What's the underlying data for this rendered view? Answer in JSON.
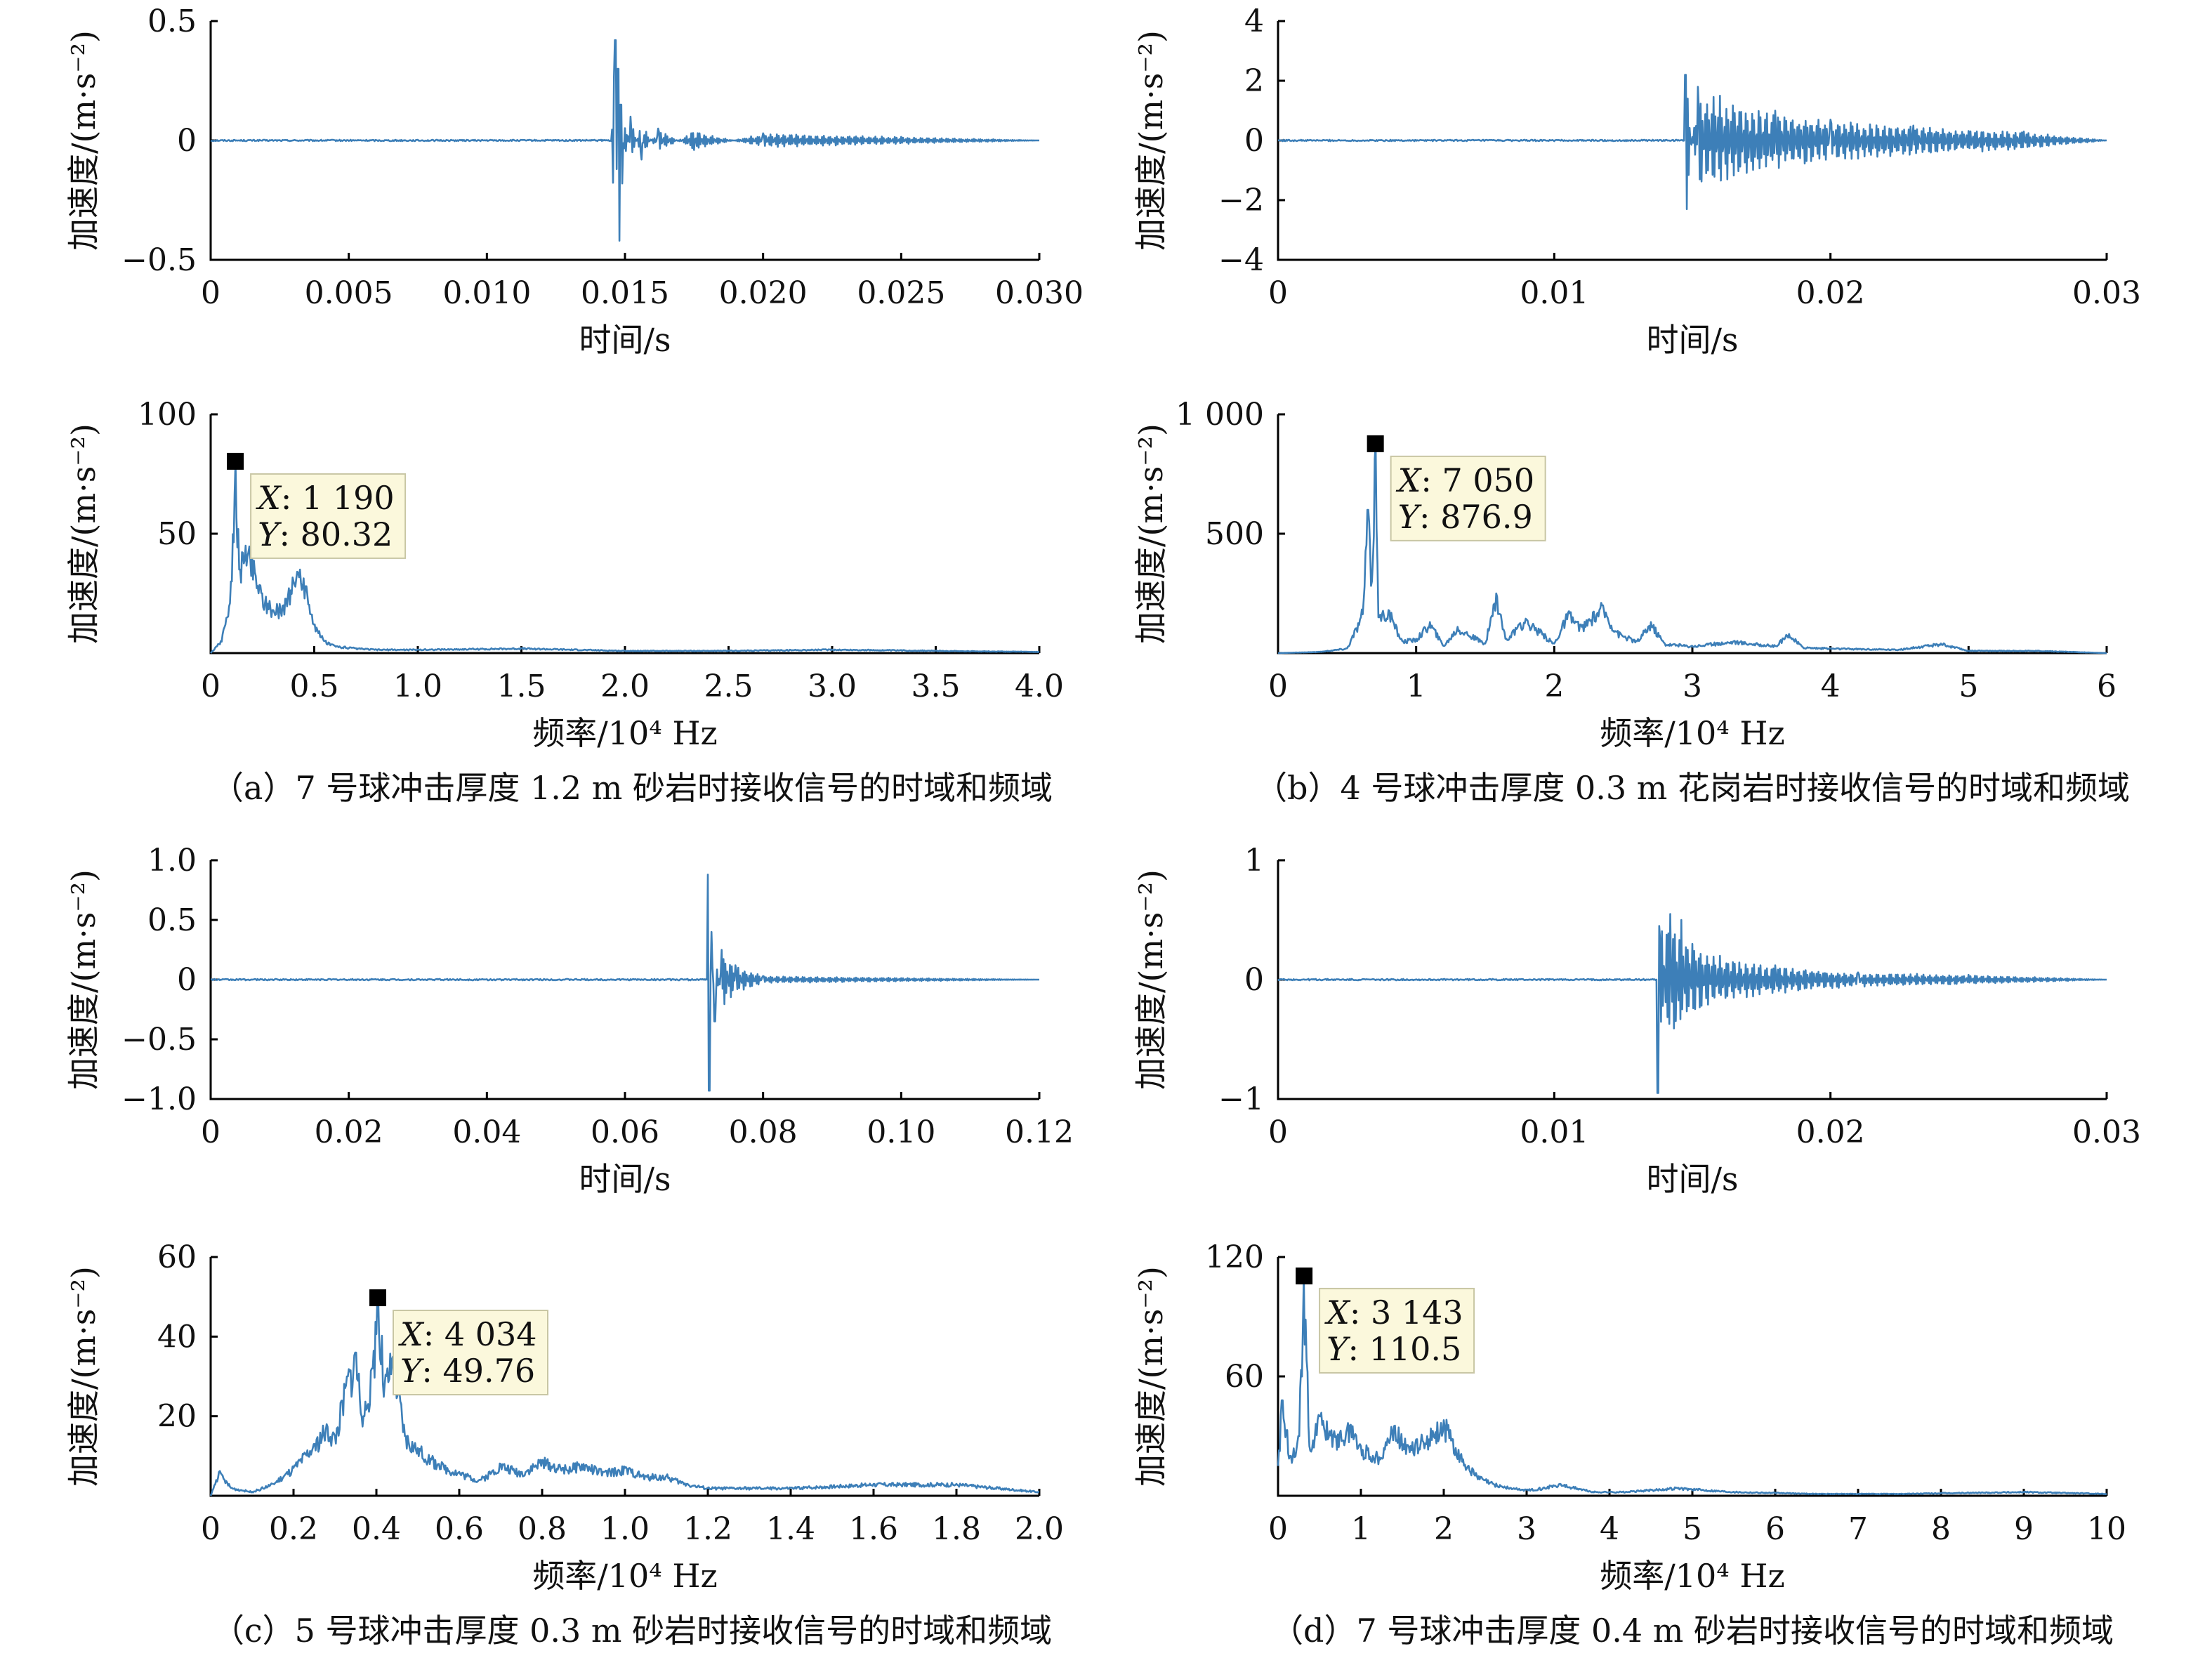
{
  "chart_data": [
    {
      "id": "a-time",
      "type": "line",
      "xlabel": "时间/s",
      "ylabel": "加速度/(m·s⁻²)",
      "xlim": [
        0,
        0.03
      ],
      "ylim": [
        -0.5,
        0.5
      ],
      "xticks": [
        0,
        0.005,
        0.01,
        0.015,
        0.02,
        0.025,
        0.03
      ],
      "xtick_labels": [
        "0",
        "0.005",
        "0.010",
        "0.015",
        "0.020",
        "0.025",
        "0.030"
      ],
      "yticks": [
        -0.5,
        0,
        0.5
      ],
      "ytick_labels": [
        "−0.5",
        "0",
        "0.5"
      ],
      "series": [
        {
          "x": [
            0,
            0.0145,
            0.01465,
            0.0147,
            0.01475,
            0.0148,
            0.01485,
            0.0149,
            0.0152,
            0.0156,
            0.0162,
            0.0175,
            0.02,
            0.025,
            0.03
          ],
          "y": [
            0,
            0,
            0.42,
            -0.12,
            0.3,
            -0.42,
            0.15,
            -0.18,
            0.1,
            -0.08,
            0.05,
            -0.04,
            0.03,
            0.015,
            0
          ]
        }
      ],
      "color": "#3d7fb8"
    },
    {
      "id": "b-time",
      "type": "line",
      "xlabel": "时间/s",
      "ylabel": "加速度/(m·s⁻²)",
      "xlim": [
        0,
        0.03
      ],
      "ylim": [
        -4,
        4
      ],
      "xticks": [
        0,
        0.01,
        0.02,
        0.03
      ],
      "xtick_labels": [
        "0",
        "0.01",
        "0.02",
        "0.03"
      ],
      "yticks": [
        -4,
        -2,
        0,
        2,
        4
      ],
      "ytick_labels": [
        "−4",
        "−2",
        "0",
        "2",
        "4"
      ],
      "series": [
        {
          "x": [
            0,
            0.0147,
            0.01475,
            0.0148,
            0.0152,
            0.016,
            0.018,
            0.02,
            0.023,
            0.027,
            0.03
          ],
          "y": [
            0,
            0,
            2.2,
            -2.3,
            1.8,
            1.5,
            1.0,
            0.7,
            0.5,
            0.3,
            0
          ]
        }
      ],
      "color": "#3d7fb8"
    },
    {
      "id": "a-freq",
      "type": "line",
      "xlabel": "频率/10⁴ Hz",
      "ylabel": "加速度/(m·s⁻²)",
      "xlim": [
        0,
        4.0
      ],
      "ylim": [
        0,
        100
      ],
      "xticks": [
        0,
        0.5,
        1.0,
        1.5,
        2.0,
        2.5,
        3.0,
        3.5,
        4.0
      ],
      "xtick_labels": [
        "0",
        "0.5",
        "1.0",
        "1.5",
        "2.0",
        "2.5",
        "3.0",
        "3.5",
        "4.0"
      ],
      "yticks": [
        50,
        100
      ],
      "ytick_labels": [
        "50",
        "100"
      ],
      "series": [
        {
          "x": [
            0,
            0.05,
            0.08,
            0.1,
            0.119,
            0.14,
            0.17,
            0.2,
            0.25,
            0.3,
            0.35,
            0.4,
            0.43,
            0.46,
            0.5,
            0.55,
            0.6,
            0.7,
            0.8,
            1.0,
            1.5,
            2.0,
            2.5,
            3.0,
            3.5,
            4.0
          ],
          "y": [
            0,
            5,
            15,
            30,
            80.32,
            35,
            45,
            40,
            25,
            18,
            20,
            30,
            35,
            28,
            12,
            5,
            3,
            2,
            1.5,
            1.5,
            2,
            1,
            1,
            1.5,
            1,
            0.5
          ]
        }
      ],
      "datatip": {
        "x_label": "X",
        "x_value": "1 190",
        "y_label": "Y",
        "y_value": "80.32",
        "x": 0.119,
        "y": 80.32
      },
      "color": "#3d7fb8"
    },
    {
      "id": "b-freq",
      "type": "line",
      "xlabel": "频率/10⁴ Hz",
      "ylabel": "加速度/(m·s⁻²)",
      "xlim": [
        0,
        6
      ],
      "ylim": [
        0,
        1000
      ],
      "xticks": [
        0,
        1,
        2,
        3,
        4,
        5,
        6
      ],
      "xtick_labels": [
        "0",
        "1",
        "2",
        "3",
        "4",
        "5",
        "6"
      ],
      "yticks": [
        500,
        1000
      ],
      "ytick_labels": [
        "500",
        "1 000"
      ],
      "series": [
        {
          "x": [
            0,
            0.3,
            0.5,
            0.6,
            0.62,
            0.65,
            0.68,
            0.705,
            0.73,
            0.8,
            0.9,
            1.0,
            1.1,
            1.2,
            1.3,
            1.5,
            1.58,
            1.65,
            1.8,
            2.0,
            2.1,
            2.2,
            2.35,
            2.45,
            2.6,
            2.7,
            2.8,
            3.0,
            3.3,
            3.6,
            3.7,
            3.8,
            4.0,
            4.5,
            4.8,
            5.0,
            5.5,
            6.0
          ],
          "y": [
            0,
            5,
            20,
            150,
            220,
            600,
            300,
            876.9,
            150,
            180,
            50,
            60,
            130,
            30,
            110,
            40,
            250,
            60,
            140,
            40,
            170,
            110,
            200,
            90,
            50,
            130,
            40,
            30,
            50,
            30,
            80,
            25,
            20,
            15,
            40,
            10,
            10,
            0
          ]
        }
      ],
      "datatip": {
        "x_label": "X",
        "x_value": "7 050",
        "y_label": "Y",
        "y_value": "876.9",
        "x": 0.705,
        "y": 876.9
      },
      "color": "#3d7fb8"
    },
    {
      "id": "c-time",
      "type": "line",
      "xlabel": "时间/s",
      "ylabel": "加速度/(m·s⁻²)",
      "xlim": [
        0,
        0.12
      ],
      "ylim": [
        -1.0,
        1.0
      ],
      "xticks": [
        0,
        0.02,
        0.04,
        0.06,
        0.08,
        0.1,
        0.12
      ],
      "xtick_labels": [
        "0",
        "0.02",
        "0.04",
        "0.06",
        "0.08",
        "0.10",
        "0.12"
      ],
      "yticks": [
        -1.0,
        -0.5,
        0,
        0.5,
        1.0
      ],
      "ytick_labels": [
        "−1.0",
        "−0.5",
        "0",
        "0.5",
        "1.0"
      ],
      "series": [
        {
          "x": [
            0,
            0.0718,
            0.072,
            0.0722,
            0.0725,
            0.073,
            0.074,
            0.076,
            0.08,
            0.12
          ],
          "y": [
            0,
            0,
            0.88,
            -0.93,
            0.4,
            -0.35,
            0.25,
            0.12,
            0.03,
            0
          ]
        }
      ],
      "color": "#3d7fb8"
    },
    {
      "id": "d-time",
      "type": "line",
      "xlabel": "时间/s",
      "ylabel": "加速度/(m·s⁻²)",
      "xlim": [
        0,
        0.03
      ],
      "ylim": [
        -1,
        1
      ],
      "xticks": [
        0,
        0.01,
        0.02,
        0.03
      ],
      "xtick_labels": [
        "0",
        "0.01",
        "0.02",
        "0.03"
      ],
      "yticks": [
        -1,
        0,
        1
      ],
      "ytick_labels": [
        "−1",
        "0",
        "1"
      ],
      "series": [
        {
          "x": [
            0,
            0.0137,
            0.01375,
            0.0138,
            0.0142,
            0.0146,
            0.015,
            0.016,
            0.018,
            0.021,
            0.025,
            0.03
          ],
          "y": [
            0,
            0,
            -0.95,
            0.45,
            0.55,
            0.5,
            0.3,
            0.2,
            0.12,
            0.06,
            0.04,
            0
          ]
        }
      ],
      "color": "#3d7fb8"
    },
    {
      "id": "c-freq",
      "type": "line",
      "xlabel": "频率/10⁴ Hz",
      "ylabel": "加速度/(m·s⁻²)",
      "xlim": [
        0,
        2.0
      ],
      "ylim": [
        0,
        60
      ],
      "xticks": [
        0,
        0.2,
        0.4,
        0.6,
        0.8,
        1.0,
        1.2,
        1.4,
        1.6,
        1.8,
        2.0
      ],
      "xtick_labels": [
        "0",
        "0.2",
        "0.4",
        "0.6",
        "0.8",
        "1.0",
        "1.2",
        "1.4",
        "1.6",
        "1.8",
        "2.0"
      ],
      "yticks": [
        20,
        40,
        60
      ],
      "ytick_labels": [
        "20",
        "40",
        "60"
      ],
      "series": [
        {
          "x": [
            0,
            0.02,
            0.05,
            0.1,
            0.15,
            0.2,
            0.25,
            0.28,
            0.3,
            0.33,
            0.35,
            0.37,
            0.39,
            0.4034,
            0.42,
            0.44,
            0.47,
            0.5,
            0.55,
            0.6,
            0.65,
            0.7,
            0.75,
            0.8,
            0.85,
            0.9,
            0.95,
            1.0,
            1.05,
            1.1,
            1.15,
            1.2,
            1.4,
            1.6,
            1.8,
            2.0
          ],
          "y": [
            0,
            6,
            2,
            1,
            3,
            7,
            13,
            18,
            15,
            30,
            36,
            20,
            32,
            49.76,
            28,
            35,
            15,
            12,
            8,
            6,
            4,
            8,
            6,
            9,
            7,
            8,
            6,
            7,
            5,
            5,
            3,
            2,
            2,
            3,
            3,
            1
          ]
        }
      ],
      "datatip": {
        "x_label": "X",
        "x_value": "4 034",
        "y_label": "Y",
        "y_value": "49.76",
        "x": 0.4034,
        "y": 49.76
      },
      "color": "#3d7fb8"
    },
    {
      "id": "d-freq",
      "type": "line",
      "xlabel": "频率/10⁴ Hz",
      "ylabel": "加速度/(m·s⁻²)",
      "xlim": [
        0,
        10
      ],
      "ylim": [
        0,
        120
      ],
      "xticks": [
        0,
        1,
        2,
        3,
        4,
        5,
        6,
        7,
        8,
        9,
        10
      ],
      "xtick_labels": [
        "0",
        "1",
        "2",
        "3",
        "4",
        "5",
        "6",
        "7",
        "8",
        "9",
        "10"
      ],
      "yticks": [
        60,
        120
      ],
      "ytick_labels": [
        "60",
        "120"
      ],
      "series": [
        {
          "x": [
            0,
            0.05,
            0.15,
            0.25,
            0.3143,
            0.38,
            0.5,
            0.7,
            0.9,
            1.0,
            1.2,
            1.4,
            1.6,
            1.8,
            2.0,
            2.2,
            2.4,
            2.6,
            2.8,
            3.0,
            3.2,
            3.4,
            3.8,
            4.2,
            4.8,
            5.5,
            6.5,
            7.5,
            9.0,
            10.0
          ],
          "y": [
            15,
            48,
            20,
            30,
            110.5,
            25,
            40,
            30,
            35,
            25,
            20,
            35,
            25,
            30,
            38,
            20,
            10,
            6,
            4,
            3,
            4,
            6,
            2,
            2,
            4,
            2,
            1,
            1,
            2,
            1
          ]
        }
      ],
      "datatip": {
        "x_label": "X",
        "x_value": "3 143",
        "y_label": "Y",
        "y_value": "110.5",
        "x": 0.3143,
        "y": 110.5
      },
      "color": "#3d7fb8"
    }
  ],
  "captions": {
    "a": "（a）7 号球冲击厚度 1.2 m 砂岩时接收信号的时域和频域",
    "b": "（b）4 号球冲击厚度 0.3 m 花岗岩时接收信号的时域和频域",
    "c": "（c）5 号球冲击厚度 0.3 m 砂岩时接收信号的时域和频域",
    "d": "（d）7 号球冲击厚度 0.4 m 砂岩时接收信号的时域和频域"
  }
}
